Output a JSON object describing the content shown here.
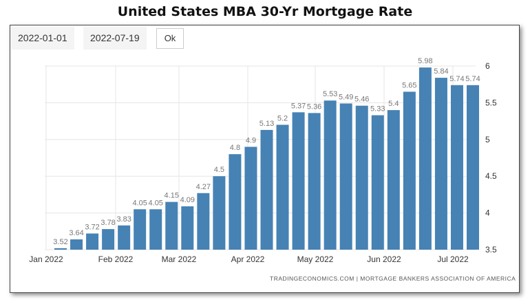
{
  "title": "United States MBA 30-Yr Mortgage Rate",
  "controls": {
    "start_date": "2022-01-01",
    "end_date": "2022-07-19",
    "ok_label": "Ok"
  },
  "source": "TRADINGECONOMICS.COM  |  MORTGAGE BANKERS ASSOCIATION OF AMERICA",
  "colors": {
    "bar": "#4682b4",
    "grid": "#e6e6e6"
  },
  "chart_data": {
    "type": "bar",
    "title": "United States MBA 30-Yr Mortgage Rate",
    "x_tick_labels": [
      "Jan 2022",
      "Feb 2022",
      "Mar 2022",
      "Apr 2022",
      "May 2022",
      "Jun 2022",
      "Jul 2022"
    ],
    "y_ticks": [
      3.5,
      4,
      4.5,
      5,
      5.5,
      6
    ],
    "ylim": [
      3.5,
      6
    ],
    "y_axis_position": "right",
    "grid": true,
    "values": [
      3.52,
      3.64,
      3.72,
      3.78,
      3.83,
      4.05,
      4.05,
      4.15,
      4.09,
      4.27,
      4.5,
      4.8,
      4.9,
      5.13,
      5.2,
      5.37,
      5.36,
      5.53,
      5.49,
      5.46,
      5.33,
      5.4,
      5.65,
      5.98,
      5.84,
      5.74,
      5.74
    ]
  }
}
